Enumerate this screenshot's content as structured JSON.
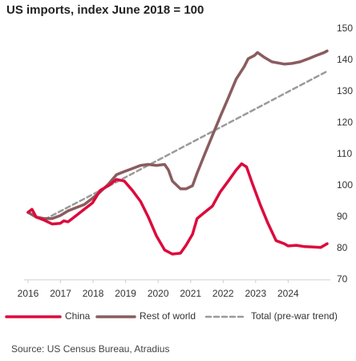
{
  "chart_data": {
    "type": "line",
    "title": "US imports, index June 2018 = 100",
    "source": "Source: US Census Bureau, Atradius",
    "xlim": [
      2016,
      2025.2
    ],
    "xticks": [
      2016,
      2017,
      2018,
      2019,
      2020,
      2021,
      2022,
      2023,
      2024
    ],
    "ylim": [
      70,
      150
    ],
    "yticks": [
      70,
      80,
      90,
      100,
      110,
      120,
      130,
      140,
      150
    ],
    "grid": false,
    "legend": "bottom",
    "series": [
      {
        "name": "China",
        "color": "#dc0a3c",
        "x": [
          2016,
          2016.12,
          2016.25,
          2016.5,
          2016.74,
          2016.99,
          2017.1,
          2017.23,
          2017.48,
          2017.73,
          2017.98,
          2018.22,
          2018.47,
          2018.72,
          2018.96,
          2019.21,
          2019.46,
          2019.7,
          2019.95,
          2020.2,
          2020.44,
          2020.69,
          2020.86,
          2021.06,
          2021.2,
          2021.43,
          2021.67,
          2021.91,
          2022.16,
          2022.4,
          2022.57,
          2022.72,
          2022.89,
          2023.14,
          2023.38,
          2023.63,
          2023.88,
          2024,
          2024.25,
          2024.5,
          2024.74,
          2025,
          2025.2
        ],
        "values": [
          91.5,
          92.5,
          90,
          89,
          87.8,
          88,
          88.8,
          88.5,
          90.5,
          92.5,
          94.5,
          98.5,
          100,
          102,
          101.5,
          98.5,
          95,
          90,
          84,
          79.5,
          78.2,
          78.5,
          81,
          84.5,
          89.5,
          91.5,
          93.5,
          98,
          101.5,
          105,
          107,
          106,
          101,
          94,
          88,
          82.5,
          81.5,
          80.8,
          81,
          80.6,
          80.5,
          80.3,
          81.5
        ]
      },
      {
        "name": "Rest of world",
        "color": "#8a5c5e",
        "x": [
          2016,
          2016.25,
          2016.5,
          2016.74,
          2016.99,
          2017.23,
          2017.48,
          2017.73,
          2017.98,
          2018.22,
          2018.47,
          2018.72,
          2018.96,
          2019.21,
          2019.46,
          2019.7,
          2019.95,
          2020.2,
          2020.32,
          2020.44,
          2020.69,
          2020.86,
          2021.06,
          2021.2,
          2021.43,
          2021.67,
          2021.91,
          2022.16,
          2022.4,
          2022.65,
          2022.77,
          2022.96,
          2023.06,
          2023.26,
          2023.5,
          2023.88,
          2024.12,
          2024.37,
          2024.62,
          2024.86,
          2025.11,
          2025.2
        ],
        "values": [
          91.5,
          90,
          89.5,
          89.5,
          90.5,
          92,
          93,
          94,
          96,
          98,
          100.5,
          103.5,
          104.5,
          105.5,
          106.5,
          106.8,
          106.5,
          106.8,
          105,
          101.5,
          99,
          99,
          100,
          104,
          110,
          116,
          122,
          128,
          134,
          138,
          140.5,
          141.5,
          142.5,
          141,
          139.5,
          138.8,
          139,
          139.5,
          140.5,
          141.5,
          142.5,
          143
        ]
      },
      {
        "name": "Total (pre-war trend)",
        "color": "#9a9a9a",
        "dashed": true,
        "x": [
          2016.5,
          2018.5,
          2025.2
        ],
        "values": [
          89.2,
          100,
          136.5
        ]
      }
    ]
  }
}
